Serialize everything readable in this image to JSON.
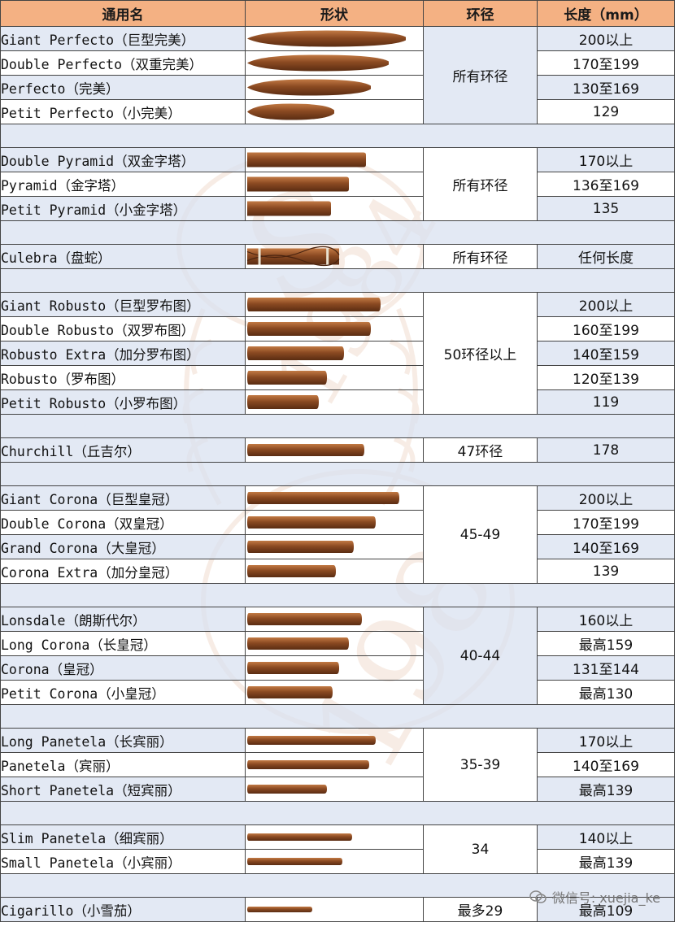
{
  "columns": {
    "name": "通用名",
    "shape": "形状",
    "ring": "环径",
    "length": "长度（mm）"
  },
  "watermark_text": "S 1984",
  "wechat_credit": "微信号: xuejia_ke",
  "groups": [
    {
      "ring": "所有环径",
      "rows": [
        {
          "name": "Giant Perfecto（巨型完美）",
          "length": "200以上",
          "shape": "perfecto",
          "size": 0.95
        },
        {
          "name": "Double Perfecto（双重完美）",
          "length": "170至199",
          "shape": "perfecto",
          "size": 0.85
        },
        {
          "name": "Perfecto（完美）",
          "length": "130至169",
          "shape": "perfecto",
          "size": 0.74
        },
        {
          "name": "Petit Perfecto（小完美）",
          "length": "129",
          "shape": "perfecto",
          "size": 0.52
        }
      ]
    },
    {
      "ring": "所有环径",
      "rows": [
        {
          "name": "Double Pyramid（双金字塔）",
          "length": "170以上",
          "shape": "pyramid",
          "size": 0.71
        },
        {
          "name": "Pyramid（金字塔）",
          "length": "136至169",
          "shape": "pyramid",
          "size": 0.61
        },
        {
          "name": "Petit Pyramid（小金字塔）",
          "length": "135",
          "shape": "pyramid",
          "size": 0.5
        }
      ]
    },
    {
      "ring": "所有环径",
      "rows": [
        {
          "name": "Culebra（盘蛇）",
          "length": "任何长度",
          "shape": "culebra",
          "size": 0.55
        }
      ]
    },
    {
      "ring": "50环径以上",
      "rows": [
        {
          "name": "Giant Robusto（巨型罗布图）",
          "length": "200以上",
          "shape": "robusto",
          "size": 0.8
        },
        {
          "name": "Double Robusto（双罗布图）",
          "length": "160至199",
          "shape": "robusto",
          "size": 0.74
        },
        {
          "name": "Robusto Extra（加分罗布图）",
          "length": "140至159",
          "shape": "robusto",
          "size": 0.58
        },
        {
          "name": "Robusto（罗布图）",
          "length": "120至139",
          "shape": "robusto",
          "size": 0.48
        },
        {
          "name": "Petit Robusto（小罗布图）",
          "length": "119",
          "shape": "robusto",
          "size": 0.43
        }
      ]
    },
    {
      "ring": "47环径",
      "rows": [
        {
          "name": "Churchill（丘吉尔）",
          "length": "178",
          "shape": "parejo",
          "size": 0.7
        }
      ]
    },
    {
      "ring": "45-49",
      "rows": [
        {
          "name": "Giant Corona（巨型皇冠）",
          "length": "200以上",
          "shape": "parejo",
          "size": 0.91
        },
        {
          "name": "Double Corona（双皇冠）",
          "length": "170至199",
          "shape": "parejo",
          "size": 0.77
        },
        {
          "name": "Grand Corona（大皇冠）",
          "length": "140至169",
          "shape": "parejo",
          "size": 0.64
        },
        {
          "name": "Corona Extra（加分皇冠）",
          "length": "139",
          "shape": "parejo",
          "size": 0.53
        }
      ]
    },
    {
      "ring": "40-44",
      "rows": [
        {
          "name": "Lonsdale（朗斯代尔）",
          "length": "160以上",
          "shape": "parejo",
          "size": 0.69
        },
        {
          "name": "Long Corona（长皇冠）",
          "length": "最高159",
          "shape": "parejo",
          "size": 0.61
        },
        {
          "name": "Corona（皇冠）",
          "length": "131至144",
          "shape": "parejo",
          "size": 0.55
        },
        {
          "name": "Petit Corona（小皇冠）",
          "length": "最高130",
          "shape": "parejo",
          "size": 0.51
        }
      ]
    },
    {
      "ring": "35-39",
      "rows": [
        {
          "name": "Long Panetela（长宾丽）",
          "length": "170以上",
          "shape": "panetela",
          "size": 0.77
        },
        {
          "name": "Panetela（宾丽）",
          "length": "140至169",
          "shape": "panetela",
          "size": 0.73
        },
        {
          "name": "Short Panetela（短宾丽）",
          "length": "最高139",
          "shape": "panetela",
          "size": 0.48
        }
      ]
    },
    {
      "ring": "34",
      "rows": [
        {
          "name": "Slim Panetela（细宾丽）",
          "length": "140以上",
          "shape": "slim",
          "size": 0.63
        },
        {
          "name": "Small Panetela（小宾丽）",
          "length": "最高139",
          "shape": "slim",
          "size": 0.57
        }
      ]
    },
    {
      "ring": "最多29",
      "rows": [
        {
          "name": "Cigarillo（小雪茄）",
          "length": "最高109",
          "shape": "cigarillo",
          "size": 0.39
        }
      ]
    }
  ],
  "colors": {
    "header": "#f4b183",
    "row_alt": "#d8e0f0",
    "wrapper_dark": "#8b4a22",
    "wrapper_light": "#c27a44",
    "watermark": "#c9824f"
  }
}
